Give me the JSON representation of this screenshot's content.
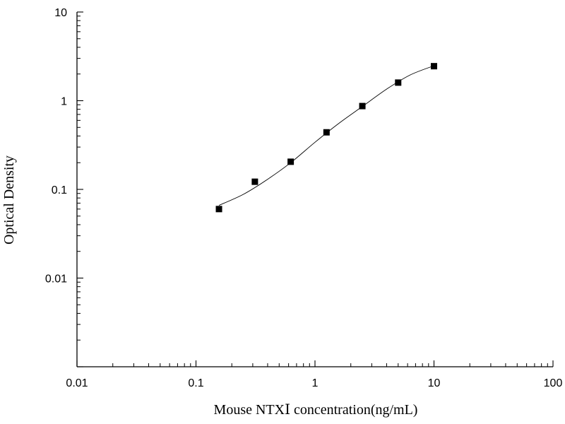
{
  "chart_data": {
    "type": "scatter",
    "title": "",
    "xlabel": "Mouse NTXⅠ concentration(ng/mL)",
    "ylabel": "Optical Density",
    "xscale": "log",
    "yscale": "log",
    "xlim": [
      0.01,
      100
    ],
    "ylim": [
      0.001,
      10
    ],
    "xticks": [
      {
        "value": 0.01,
        "label": "0.01"
      },
      {
        "value": 0.1,
        "label": "0.1"
      },
      {
        "value": 1,
        "label": "1"
      },
      {
        "value": 10,
        "label": "10"
      },
      {
        "value": 100,
        "label": "100"
      }
    ],
    "yticks": [
      {
        "value": 0.01,
        "label": "0.01"
      },
      {
        "value": 0.1,
        "label": "0.1"
      },
      {
        "value": 1,
        "label": "1"
      },
      {
        "value": 10,
        "label": "10"
      }
    ],
    "grid": false,
    "legend": "none",
    "marker": "square",
    "marker_color": "#000000",
    "line_color": "#000000",
    "points": [
      {
        "x": 0.156,
        "y": 0.06
      },
      {
        "x": 0.3125,
        "y": 0.122
      },
      {
        "x": 0.625,
        "y": 0.205
      },
      {
        "x": 1.25,
        "y": 0.44
      },
      {
        "x": 2.5,
        "y": 0.87
      },
      {
        "x": 5,
        "y": 1.6
      },
      {
        "x": 10,
        "y": 2.45
      }
    ],
    "fit_curve": [
      {
        "x": 0.156,
        "y": 0.066
      },
      {
        "x": 0.25,
        "y": 0.088
      },
      {
        "x": 0.4,
        "y": 0.13
      },
      {
        "x": 0.625,
        "y": 0.2
      },
      {
        "x": 1,
        "y": 0.34
      },
      {
        "x": 1.6,
        "y": 0.56
      },
      {
        "x": 2.5,
        "y": 0.86
      },
      {
        "x": 4,
        "y": 1.35
      },
      {
        "x": 6.3,
        "y": 1.95
      },
      {
        "x": 10,
        "y": 2.48
      }
    ]
  }
}
